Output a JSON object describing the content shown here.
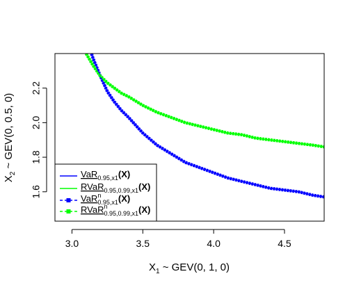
{
  "chart_data": {
    "type": "line",
    "xlabel": {
      "main": "X",
      "sub": "1",
      "rest": " ~ GEV(0, 1, 0)"
    },
    "ylabel": {
      "main": "X",
      "sub": "2",
      "rest": " ~ GEV(0, 0.5, 0)"
    },
    "xlim": [
      2.88,
      4.78
    ],
    "ylim": [
      1.43,
      2.4
    ],
    "xticks": [
      3.0,
      3.5,
      4.0,
      4.5
    ],
    "xtick_labels": [
      "3.0",
      "3.5",
      "4.0",
      "4.5"
    ],
    "yticks": [
      1.6,
      1.8,
      2.0,
      2.2
    ],
    "ytick_labels": [
      "1.6",
      "1.8",
      "2.0",
      "2.2"
    ],
    "legend_position": "bottom-left",
    "series": [
      {
        "legend_main": "VaR",
        "legend_sub": "0.95,x1",
        "legend_sup": "",
        "legend_tail": "(X)",
        "color": "#0000ff",
        "style": "solid",
        "x": [
          3.1,
          3.15,
          3.2,
          3.25,
          3.3,
          3.35,
          3.4,
          3.5,
          3.6,
          3.7,
          3.8,
          3.9,
          4.0,
          4.1,
          4.2,
          4.3,
          4.4,
          4.5,
          4.6,
          4.7,
          4.78
        ],
        "y": [
          2.49,
          2.37,
          2.27,
          2.18,
          2.12,
          2.07,
          2.03,
          1.94,
          1.87,
          1.82,
          1.77,
          1.74,
          1.71,
          1.68,
          1.66,
          1.64,
          1.62,
          1.61,
          1.6,
          1.58,
          1.57
        ]
      },
      {
        "legend_main": "RVaR",
        "legend_sub": "0.95,0.99,x1",
        "legend_sup": "",
        "legend_tail": "(X)",
        "color": "#00ff00",
        "style": "solid",
        "x": [
          3.1,
          3.15,
          3.2,
          3.25,
          3.3,
          3.35,
          3.4,
          3.5,
          3.6,
          3.7,
          3.8,
          3.9,
          4.0,
          4.1,
          4.2,
          4.3,
          4.4,
          4.5,
          4.6,
          4.7,
          4.78
        ],
        "y": [
          2.4,
          2.33,
          2.27,
          2.23,
          2.2,
          2.17,
          2.15,
          2.1,
          2.06,
          2.03,
          2.0,
          1.98,
          1.96,
          1.94,
          1.93,
          1.91,
          1.9,
          1.89,
          1.88,
          1.87,
          1.86
        ]
      },
      {
        "legend_main": "VaR",
        "legend_sub": "0.95,x1",
        "legend_sup": "n",
        "legend_tail": "(X)",
        "color": "#0000ff",
        "style": "dashed-points",
        "x": [
          3.1,
          3.15,
          3.2,
          3.25,
          3.3,
          3.35,
          3.4,
          3.5,
          3.6,
          3.7,
          3.8,
          3.9,
          4.0,
          4.1,
          4.2,
          4.3,
          4.4,
          4.5,
          4.6,
          4.7,
          4.78
        ],
        "y": [
          2.49,
          2.37,
          2.27,
          2.18,
          2.12,
          2.07,
          2.03,
          1.94,
          1.87,
          1.82,
          1.77,
          1.74,
          1.71,
          1.68,
          1.66,
          1.64,
          1.62,
          1.61,
          1.6,
          1.58,
          1.57
        ]
      },
      {
        "legend_main": "RVaR",
        "legend_sub": "0.95,0.99,x1",
        "legend_sup": "n",
        "legend_tail": "(X)",
        "color": "#00ff00",
        "style": "dashed-points",
        "x": [
          3.1,
          3.15,
          3.2,
          3.25,
          3.3,
          3.35,
          3.4,
          3.5,
          3.6,
          3.7,
          3.8,
          3.9,
          4.0,
          4.1,
          4.2,
          4.3,
          4.4,
          4.5,
          4.6,
          4.7,
          4.78
        ],
        "y": [
          2.4,
          2.33,
          2.27,
          2.23,
          2.2,
          2.17,
          2.15,
          2.1,
          2.06,
          2.03,
          2.0,
          1.98,
          1.96,
          1.94,
          1.93,
          1.91,
          1.9,
          1.89,
          1.88,
          1.87,
          1.86
        ]
      }
    ]
  }
}
